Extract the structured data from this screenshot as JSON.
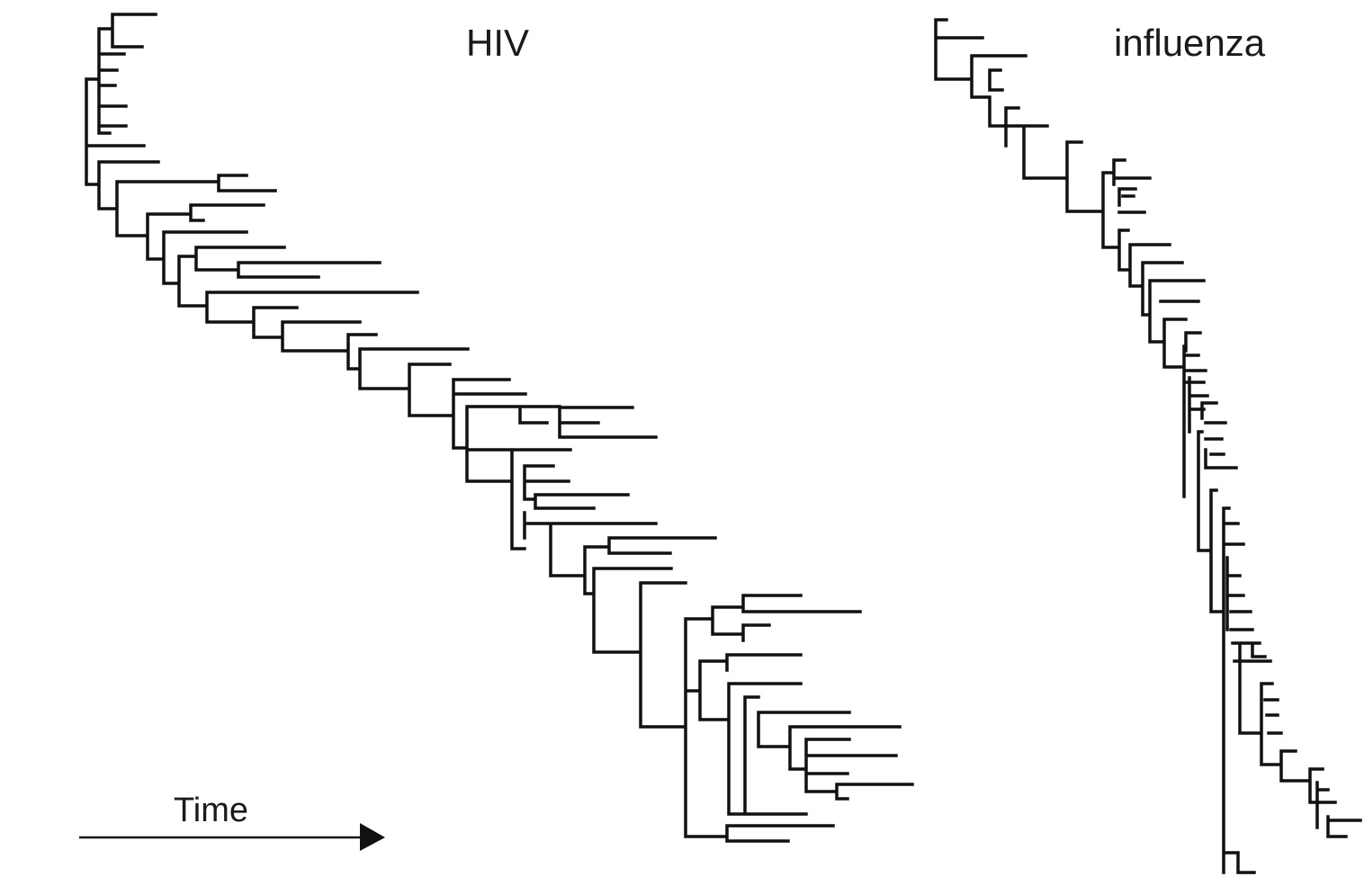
{
  "panels": [
    {
      "key": "hiv",
      "title": "HIV"
    },
    {
      "key": "influenza",
      "title": "influenza"
    }
  ],
  "axis": {
    "label": "Time",
    "icon": "arrow-right-icon"
  },
  "colors": {
    "line": "#111111",
    "background": "#ffffff"
  }
}
